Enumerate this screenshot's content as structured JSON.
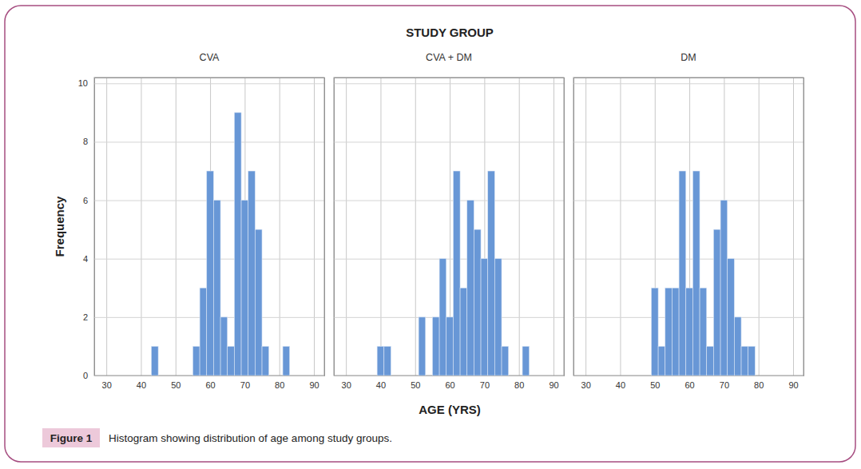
{
  "figure": {
    "title": "STUDY GROUP",
    "xlabel": "AGE (YRS)",
    "ylabel": "Frequency",
    "figure_label": "Figure 1",
    "caption": "Histogram showing distribution of age among study groups."
  },
  "chart_data": [
    {
      "type": "histogram",
      "title": "CVA",
      "bins": [
        43,
        45,
        47,
        49,
        51,
        53,
        55,
        57,
        59,
        61,
        63,
        65,
        67,
        69,
        71,
        73,
        75,
        77,
        79,
        81,
        83
      ],
      "counts": [
        1,
        0,
        0,
        0,
        0,
        0,
        1,
        3,
        7,
        6,
        2,
        1,
        9,
        6,
        7,
        5,
        1,
        0,
        0,
        1
      ],
      "color": "#6897d6",
      "xlim": [
        26.5,
        93
      ],
      "ylim": [
        0,
        10.2
      ],
      "xticks": [
        30,
        40,
        50,
        60,
        70,
        80,
        90
      ],
      "yticks": [
        0,
        2,
        4,
        6,
        8,
        10
      ],
      "grid": true
    },
    {
      "type": "histogram",
      "title": "CVA + DM",
      "bins": [
        39,
        41,
        43,
        45,
        47,
        49,
        51,
        53,
        55,
        57,
        59,
        61,
        63,
        65,
        67,
        69,
        71,
        73,
        75,
        77,
        79,
        81,
        83
      ],
      "counts": [
        1,
        1,
        0,
        0,
        0,
        0,
        2,
        0,
        2,
        4,
        2,
        7,
        3,
        6,
        5,
        4,
        7,
        4,
        1,
        0,
        0,
        1
      ],
      "color": "#6897d6",
      "xlim": [
        26.5,
        93
      ],
      "ylim": [
        0,
        10.2
      ],
      "xticks": [
        30,
        40,
        50,
        60,
        70,
        80,
        90
      ],
      "yticks": [
        0,
        2,
        4,
        6,
        8,
        10
      ],
      "grid": true,
      "tick_labels": "x"
    },
    {
      "type": "histogram",
      "title": "DM",
      "bins": [
        49,
        51,
        53,
        55,
        57,
        59,
        61,
        63,
        65,
        67,
        69,
        71,
        73,
        75,
        77,
        79
      ],
      "counts": [
        3,
        1,
        3,
        3,
        7,
        3,
        7,
        3,
        1,
        5,
        6,
        4,
        2,
        1,
        1
      ],
      "color": "#6897d6",
      "xlim": [
        26.5,
        93
      ],
      "ylim": [
        0,
        10.2
      ],
      "xticks": [
        30,
        40,
        50,
        60,
        70,
        80,
        90
      ],
      "yticks": [
        0,
        2,
        4,
        6,
        8,
        10
      ],
      "grid": true,
      "tick_labels": "x"
    }
  ]
}
